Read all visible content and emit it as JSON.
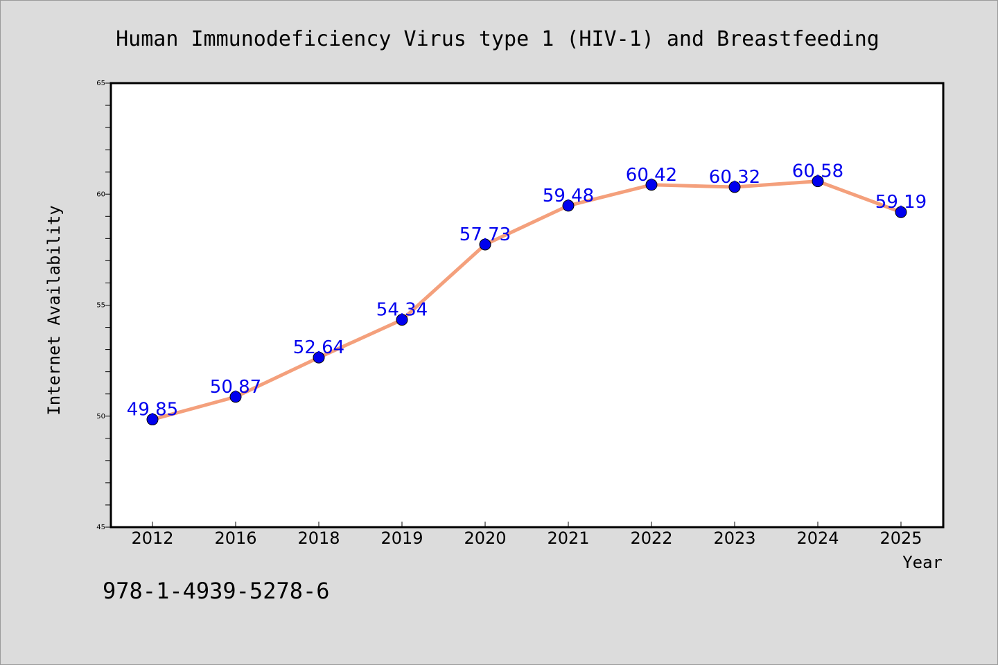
{
  "chart_data": {
    "type": "line",
    "title": "Human Immunodeficiency Virus type 1 (HIV-1) and Breastfeeding",
    "xlabel": "Year",
    "ylabel": "Internet Availability",
    "categories": [
      "2012",
      "2016",
      "2018",
      "2019",
      "2020",
      "2021",
      "2022",
      "2023",
      "2024",
      "2025"
    ],
    "series": [
      {
        "values": [
          49.85,
          50.87,
          52.64,
          54.34,
          57.73,
          59.48,
          60.42,
          60.32,
          60.58,
          59.19
        ]
      }
    ],
    "ylim": [
      45,
      65
    ],
    "yticks": [
      45,
      50,
      55,
      60,
      65
    ],
    "data_labels": [
      "49.85",
      "50.87",
      "52.64",
      "54.34",
      "57.73",
      "59.48",
      "60.42",
      "60.32",
      "60.58",
      "59.19"
    ],
    "grid": false,
    "legend": "none",
    "colors": {
      "line": "#f4a07c",
      "marker": "#0000ee",
      "data_label": "#0000ee",
      "plot_background": "#ffffff",
      "page_background": "#dcdcdc"
    }
  },
  "footer": {
    "isbn": "978-1-4939-5278-6"
  }
}
